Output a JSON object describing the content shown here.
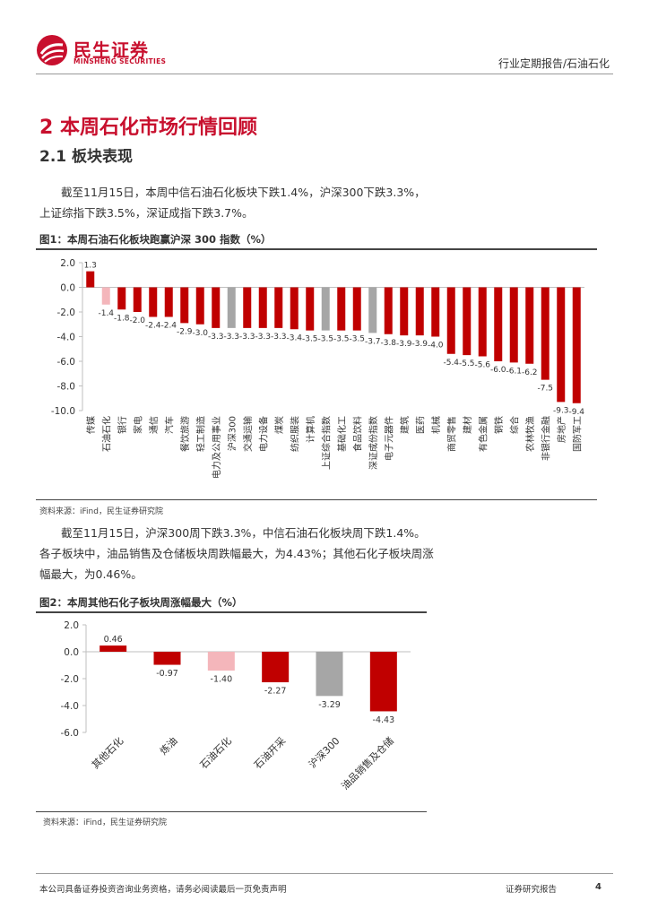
{
  "header": {
    "logo_cn": "民生证券",
    "logo_en": "MINSHENG SECURITIES",
    "breadcrumb": "行业定期报告/石油石化"
  },
  "section": {
    "title": "2 本周石化市场行情回顾",
    "subtitle": "2.1 板块表现",
    "paragraph1": "截至11月15日，本周中信石油石化板块下跌1.4%，沪深300下跌3.3%，上证综指下跌3.5%，深证成指下跌3.7%。",
    "paragraph2": "截至11月15日，沪深300周下跌3.3%，中信石油石化板块周下跌1.4%。各子板块中，油品销售及仓储板块周跌幅最大，为4.43%；其他石化子板块周涨幅最大，为0.46%。"
  },
  "figure1": {
    "title": "图1：本周石油石化板块跑赢沪深 300 指数（%）",
    "source": "资料来源：iFind，民生证券研究院"
  },
  "figure2": {
    "title": "图2：本周其他石化子板块周涨幅最大（%）",
    "source": "资料来源：iFind，民生证券研究院"
  },
  "footer": {
    "disclaimer": "本公司具备证券投资咨询业务资格，请务必阅读最后一页免责声明",
    "report_type": "证券研究报告",
    "page": "4"
  },
  "colors": {
    "brand_red": "#c8102e",
    "bar_red": "#c00000",
    "bar_pink": "#f4b6bb",
    "bar_gray": "#a6a6a6"
  },
  "chart_data": [
    {
      "type": "bar",
      "title": "本周石油石化板块跑赢沪深 300 指数（%）",
      "ylim": [
        -10,
        2
      ],
      "yticks": [
        "2.0",
        "0.0",
        "-2.0",
        "-4.0",
        "-6.0",
        "-8.0",
        "-10.0"
      ],
      "categories": [
        "传媒",
        "石油石化",
        "银行",
        "家电",
        "通信",
        "汽车",
        "餐饮旅游",
        "轻工制造",
        "电力及公用事业",
        "沪深300",
        "交通运输",
        "电力设备",
        "煤炭",
        "纺织服装",
        "计算机",
        "上证综合指数",
        "基础化工",
        "食品饮料",
        "深证成份指数",
        "电子元器件",
        "建筑",
        "医药",
        "机械",
        "商贸零售",
        "建材",
        "有色金属",
        "钢铁",
        "综合",
        "农林牧渔",
        "非银行金融",
        "房地产",
        "国防军工"
      ],
      "values": [
        1.3,
        -1.4,
        -1.8,
        -2.0,
        -2.4,
        -2.4,
        -2.9,
        -3.0,
        -3.3,
        -3.3,
        -3.3,
        -3.3,
        -3.3,
        -3.4,
        -3.5,
        -3.5,
        -3.5,
        -3.5,
        -3.7,
        -3.8,
        -3.9,
        -3.9,
        -4.0,
        -5.4,
        -5.5,
        -5.6,
        -6.0,
        -6.1,
        -6.2,
        -7.5,
        -9.3,
        -9.4
      ],
      "labels": [
        "1.3",
        "-1.4",
        "-1.8",
        "-2.0",
        "-2.4",
        "-2.4",
        "-2.9",
        "-3.0",
        "-3.3",
        "-3.3",
        "-3.3",
        "-3.3",
        "-3.3",
        "-3.4",
        "-3.5",
        "-3.5",
        "-3.5",
        "-3.5",
        "-3.7",
        "-3.8",
        "-3.9",
        "-3.9",
        "-4.0",
        "-5.4",
        "-5.5",
        "-5.6",
        "-6.0",
        "-6.1",
        "-6.2",
        "-7.5",
        "-9.3",
        "-9.4"
      ],
      "highlight": {
        "石油石化": "pink",
        "沪深300": "gray",
        "上证综合指数": "gray",
        "深证成份指数": "gray"
      }
    },
    {
      "type": "bar",
      "title": "本周其他石化子板块周涨幅最大（%）",
      "ylim": [
        -6,
        2
      ],
      "yticks": [
        "2.0",
        "0.0",
        "-2.0",
        "-4.0",
        "-6.0"
      ],
      "categories": [
        "其他石化",
        "炼油",
        "石油石化",
        "石油开采",
        "沪深300",
        "油品销售及仓储"
      ],
      "values": [
        0.46,
        -0.97,
        -1.4,
        -2.27,
        -3.29,
        -4.43
      ],
      "labels": [
        "0.46",
        "-0.97",
        "-1.40",
        "-2.27",
        "-3.29",
        "-4.43"
      ],
      "highlight": {
        "石油石化": "pink",
        "沪深300": "gray"
      }
    }
  ]
}
